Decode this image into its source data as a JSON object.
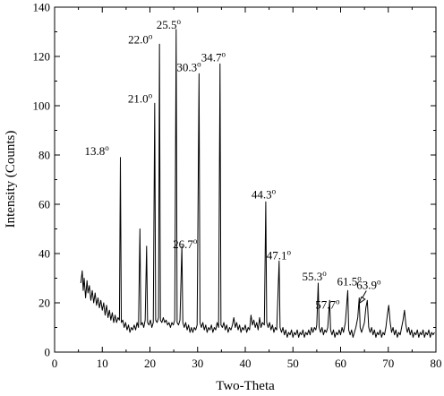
{
  "chart_data": {
    "type": "line",
    "xlabel": "Two-Theta",
    "ylabel": "Intensity  (Counts)",
    "xlim": [
      0,
      80
    ],
    "ylim": [
      0,
      140
    ],
    "xticks": [
      0,
      10,
      20,
      30,
      40,
      50,
      60,
      70,
      80
    ],
    "yticks": [
      0,
      20,
      40,
      60,
      80,
      100,
      120,
      140
    ],
    "grid": false,
    "series": [
      {
        "values_description": "XRD pattern",
        "points": [
          [
            5.5,
            28
          ],
          [
            5.8,
            33
          ],
          [
            6.0,
            25
          ],
          [
            6.2,
            30
          ],
          [
            6.5,
            22
          ],
          [
            6.8,
            29
          ],
          [
            7.0,
            24
          ],
          [
            7.3,
            27
          ],
          [
            7.6,
            21
          ],
          [
            7.9,
            25
          ],
          [
            8.2,
            20
          ],
          [
            8.5,
            24
          ],
          [
            8.8,
            19
          ],
          [
            9.1,
            22
          ],
          [
            9.4,
            18
          ],
          [
            9.7,
            21
          ],
          [
            10.0,
            17
          ],
          [
            10.3,
            20
          ],
          [
            10.6,
            15
          ],
          [
            10.9,
            19
          ],
          [
            11.2,
            14
          ],
          [
            11.5,
            17
          ],
          [
            11.8,
            13
          ],
          [
            12.1,
            16
          ],
          [
            12.4,
            12
          ],
          [
            12.7,
            15
          ],
          [
            13.0,
            12
          ],
          [
            13.3,
            14
          ],
          [
            13.6,
            13
          ],
          [
            13.8,
            79
          ],
          [
            14.0,
            12
          ],
          [
            14.3,
            13
          ],
          [
            14.6,
            10
          ],
          [
            14.9,
            12
          ],
          [
            15.2,
            9
          ],
          [
            15.5,
            11
          ],
          [
            15.8,
            8
          ],
          [
            16.1,
            10
          ],
          [
            16.4,
            9
          ],
          [
            16.7,
            11
          ],
          [
            17.0,
            9
          ],
          [
            17.3,
            12
          ],
          [
            17.6,
            10
          ],
          [
            17.9,
            50
          ],
          [
            18.1,
            11
          ],
          [
            18.4,
            12
          ],
          [
            18.7,
            10
          ],
          [
            19.0,
            13
          ],
          [
            19.3,
            43
          ],
          [
            19.5,
            12
          ],
          [
            19.8,
            11
          ],
          [
            20.1,
            13
          ],
          [
            20.4,
            10
          ],
          [
            20.7,
            12
          ],
          [
            21.0,
            101
          ],
          [
            21.2,
            13
          ],
          [
            21.5,
            12
          ],
          [
            21.8,
            14
          ],
          [
            22.0,
            125
          ],
          [
            22.2,
            13
          ],
          [
            22.5,
            12
          ],
          [
            22.8,
            14
          ],
          [
            23.1,
            12
          ],
          [
            23.4,
            13
          ],
          [
            23.7,
            11
          ],
          [
            24.0,
            12
          ],
          [
            24.3,
            10
          ],
          [
            24.6,
            12
          ],
          [
            24.9,
            11
          ],
          [
            25.2,
            13
          ],
          [
            25.5,
            131
          ],
          [
            25.7,
            12
          ],
          [
            26.0,
            11
          ],
          [
            26.3,
            13
          ],
          [
            26.7,
            43
          ],
          [
            26.9,
            12
          ],
          [
            27.2,
            10
          ],
          [
            27.5,
            12
          ],
          [
            27.8,
            9
          ],
          [
            28.1,
            11
          ],
          [
            28.4,
            8
          ],
          [
            28.7,
            10
          ],
          [
            29.0,
            8
          ],
          [
            29.3,
            10
          ],
          [
            29.6,
            9
          ],
          [
            29.9,
            11
          ],
          [
            30.3,
            113
          ],
          [
            30.5,
            12
          ],
          [
            30.8,
            10
          ],
          [
            31.1,
            12
          ],
          [
            31.4,
            9
          ],
          [
            31.7,
            11
          ],
          [
            32.0,
            8
          ],
          [
            32.3,
            10
          ],
          [
            32.6,
            9
          ],
          [
            32.9,
            11
          ],
          [
            33.2,
            8
          ],
          [
            33.5,
            10
          ],
          [
            33.8,
            9
          ],
          [
            34.1,
            12
          ],
          [
            34.4,
            10
          ],
          [
            34.7,
            117
          ],
          [
            34.9,
            11
          ],
          [
            35.2,
            10
          ],
          [
            35.5,
            12
          ],
          [
            35.8,
            9
          ],
          [
            36.1,
            11
          ],
          [
            36.4,
            8
          ],
          [
            36.7,
            10
          ],
          [
            37.0,
            9
          ],
          [
            37.3,
            11
          ],
          [
            37.6,
            14
          ],
          [
            37.9,
            10
          ],
          [
            38.2,
            12
          ],
          [
            38.5,
            9
          ],
          [
            38.8,
            11
          ],
          [
            39.1,
            8
          ],
          [
            39.4,
            10
          ],
          [
            39.7,
            9
          ],
          [
            40.0,
            11
          ],
          [
            40.3,
            8
          ],
          [
            40.6,
            10
          ],
          [
            40.9,
            9
          ],
          [
            41.2,
            15
          ],
          [
            41.5,
            11
          ],
          [
            41.8,
            13
          ],
          [
            42.1,
            10
          ],
          [
            42.4,
            12
          ],
          [
            42.7,
            9
          ],
          [
            43.0,
            14
          ],
          [
            43.3,
            10
          ],
          [
            43.6,
            12
          ],
          [
            44.0,
            11
          ],
          [
            44.3,
            61
          ],
          [
            44.5,
            12
          ],
          [
            44.8,
            10
          ],
          [
            45.1,
            12
          ],
          [
            45.4,
            9
          ],
          [
            45.7,
            11
          ],
          [
            46.0,
            8
          ],
          [
            46.3,
            10
          ],
          [
            46.6,
            9
          ],
          [
            47.1,
            37
          ],
          [
            47.3,
            10
          ],
          [
            47.6,
            8
          ],
          [
            47.9,
            10
          ],
          [
            48.2,
            7
          ],
          [
            48.5,
            9
          ],
          [
            48.8,
            6
          ],
          [
            49.1,
            8
          ],
          [
            49.4,
            7
          ],
          [
            49.7,
            9
          ],
          [
            50.0,
            6
          ],
          [
            50.3,
            8
          ],
          [
            50.6,
            7
          ],
          [
            50.9,
            9
          ],
          [
            51.2,
            6
          ],
          [
            51.5,
            8
          ],
          [
            51.8,
            7
          ],
          [
            52.1,
            9
          ],
          [
            52.4,
            6
          ],
          [
            52.7,
            8
          ],
          [
            53.0,
            7
          ],
          [
            53.3,
            9
          ],
          [
            53.6,
            7
          ],
          [
            53.9,
            10
          ],
          [
            54.2,
            8
          ],
          [
            54.5,
            10
          ],
          [
            54.8,
            9
          ],
          [
            55.0,
            11
          ],
          [
            55.3,
            28
          ],
          [
            55.5,
            10
          ],
          [
            55.8,
            8
          ],
          [
            56.1,
            10
          ],
          [
            56.4,
            7
          ],
          [
            56.7,
            9
          ],
          [
            57.0,
            8
          ],
          [
            57.3,
            10
          ],
          [
            57.7,
            21
          ],
          [
            57.9,
            9
          ],
          [
            58.2,
            7
          ],
          [
            58.5,
            9
          ],
          [
            58.8,
            6
          ],
          [
            59.1,
            8
          ],
          [
            59.4,
            7
          ],
          [
            59.7,
            9
          ],
          [
            60.0,
            7
          ],
          [
            60.3,
            10
          ],
          [
            60.6,
            8
          ],
          [
            61.0,
            12
          ],
          [
            61.5,
            25
          ],
          [
            61.7,
            9
          ],
          [
            62.0,
            7
          ],
          [
            62.3,
            9
          ],
          [
            62.6,
            6
          ],
          [
            62.9,
            8
          ],
          [
            63.2,
            10
          ],
          [
            63.6,
            14
          ],
          [
            63.9,
            22
          ],
          [
            64.1,
            10
          ],
          [
            64.4,
            8
          ],
          [
            64.7,
            10
          ],
          [
            65.0,
            12
          ],
          [
            65.3,
            18
          ],
          [
            65.6,
            21
          ],
          [
            65.9,
            10
          ],
          [
            66.2,
            8
          ],
          [
            66.5,
            10
          ],
          [
            66.8,
            7
          ],
          [
            67.1,
            9
          ],
          [
            67.4,
            6
          ],
          [
            67.7,
            8
          ],
          [
            68.0,
            7
          ],
          [
            68.3,
            9
          ],
          [
            68.6,
            6
          ],
          [
            68.9,
            8
          ],
          [
            69.2,
            7
          ],
          [
            69.5,
            10
          ],
          [
            69.8,
            15
          ],
          [
            70.1,
            19
          ],
          [
            70.4,
            12
          ],
          [
            70.7,
            8
          ],
          [
            71.0,
            10
          ],
          [
            71.3,
            7
          ],
          [
            71.6,
            9
          ],
          [
            71.9,
            6
          ],
          [
            72.2,
            8
          ],
          [
            72.5,
            7
          ],
          [
            72.8,
            10
          ],
          [
            73.1,
            13
          ],
          [
            73.4,
            17
          ],
          [
            73.7,
            11
          ],
          [
            74.0,
            8
          ],
          [
            74.3,
            10
          ],
          [
            74.6,
            7
          ],
          [
            74.9,
            9
          ],
          [
            75.2,
            6
          ],
          [
            75.5,
            8
          ],
          [
            75.8,
            7
          ],
          [
            76.1,
            9
          ],
          [
            76.4,
            6
          ],
          [
            76.7,
            8
          ],
          [
            77.0,
            7
          ],
          [
            77.3,
            9
          ],
          [
            77.6,
            6
          ],
          [
            77.9,
            8
          ],
          [
            78.2,
            7
          ],
          [
            78.5,
            9
          ],
          [
            78.8,
            6
          ],
          [
            79.1,
            8
          ],
          [
            79.4,
            7
          ],
          [
            79.7,
            8
          ]
        ]
      }
    ],
    "annotations": [
      {
        "text": "13.8",
        "sup": "o",
        "x": 13.8,
        "y": 79
      },
      {
        "text": "21.0",
        "sup": "o",
        "x": 21.0,
        "y": 101
      },
      {
        "text": "22.0",
        "sup": "o",
        "x": 22.0,
        "y": 125
      },
      {
        "text": "25.5",
        "sup": "o",
        "x": 25.5,
        "y": 131
      },
      {
        "text": "26.7",
        "sup": "o",
        "x": 26.7,
        "y": 43
      },
      {
        "text": "30.3",
        "sup": "o",
        "x": 30.3,
        "y": 113
      },
      {
        "text": "34.7",
        "sup": "o",
        "x": 34.7,
        "y": 117
      },
      {
        "text": "44.3",
        "sup": "o",
        "x": 44.3,
        "y": 61
      },
      {
        "text": "47.1",
        "sup": "o",
        "x": 47.1,
        "y": 37
      },
      {
        "text": "55.3",
        "sup": "o",
        "x": 55.3,
        "y": 28
      },
      {
        "text": "57.7",
        "sup": "o",
        "x": 57.7,
        "y": 21
      },
      {
        "text": "61.5",
        "sup": "o",
        "x": 61.5,
        "y": 25
      },
      {
        "text": "63.9",
        "sup": "o",
        "x": 63.9,
        "y": 22
      }
    ]
  }
}
